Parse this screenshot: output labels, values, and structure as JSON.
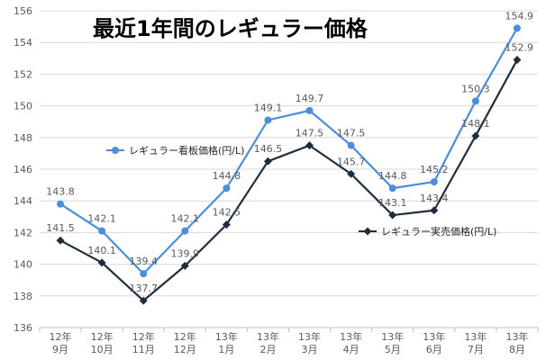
{
  "chart_data": {
    "type": "line",
    "title": "最近1年間のレギュラー価格",
    "categories": [
      [
        "12年",
        "9月"
      ],
      [
        "12年",
        "10月"
      ],
      [
        "12年",
        "11月"
      ],
      [
        "12年",
        "12月"
      ],
      [
        "13年",
        "1月"
      ],
      [
        "13年",
        "2月"
      ],
      [
        "13年",
        "3月"
      ],
      [
        "13年",
        "4月"
      ],
      [
        "13年",
        "5月"
      ],
      [
        "13年",
        "6月"
      ],
      [
        "13年",
        "7月"
      ],
      [
        "13年",
        "8月"
      ]
    ],
    "series": [
      {
        "name": "レギュラー看板価格(円/L)",
        "color": "#4a8fdb",
        "marker": "circle",
        "values": [
          143.8,
          142.1,
          139.4,
          142.1,
          144.8,
          149.1,
          149.7,
          147.5,
          144.8,
          145.2,
          150.3,
          154.9
        ],
        "labels": [
          "143.8",
          "142.1",
          "139.4",
          "142.1",
          "144.8",
          "149.1",
          "149.7",
          "147.5",
          "144.8",
          "145.2",
          "150.3",
          "154.9"
        ]
      },
      {
        "name": "レギュラー実売価格(円/L)",
        "color": "#1f2d3d",
        "marker": "diamond",
        "values": [
          141.5,
          140.1,
          137.7,
          139.9,
          142.5,
          146.5,
          147.5,
          145.7,
          143.1,
          143.4,
          148.1,
          152.9
        ],
        "labels": [
          "141.5",
          "140.1",
          "137.7",
          "139.9",
          "142.5",
          "146.5",
          "147.5",
          "145.7",
          "143.1",
          "143.4",
          "148.1",
          "152.9"
        ]
      }
    ],
    "ylim": [
      136,
      156
    ],
    "yticks": [
      "136",
      "138",
      "140",
      "142",
      "144",
      "146",
      "148",
      "150",
      "152",
      "154",
      "156"
    ],
    "grid": true,
    "legend_placement": "inside (series 1 upper-left, series 2 middle-right)"
  }
}
